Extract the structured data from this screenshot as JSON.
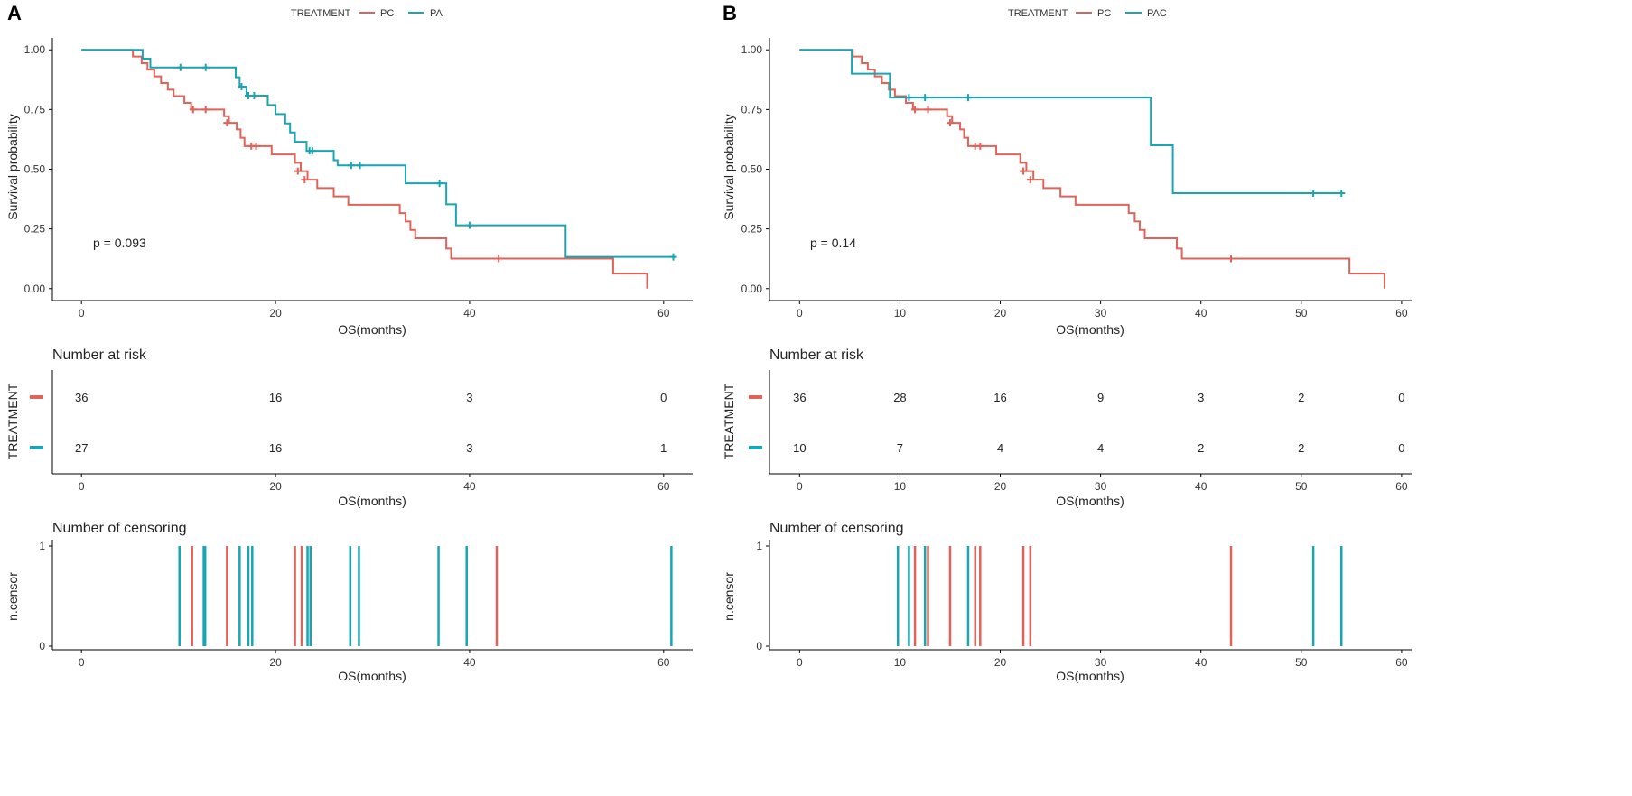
{
  "colors": {
    "pc": "#e0635a",
    "pa": "#19a6b2",
    "axis": "#000000",
    "text": "#333333"
  },
  "panels": [
    {
      "id": "A",
      "label": "A",
      "legend": {
        "title": "TREATMENT",
        "items": [
          {
            "key": "pc",
            "name": "PC"
          },
          {
            "key": "pa",
            "name": "PA"
          }
        ]
      },
      "chart_data": {
        "type": "line",
        "subtype": "kaplan-meier",
        "xlabel": "OS(months)",
        "ylabel": "Survival probability",
        "xlim": [
          -3,
          63
        ],
        "xticks": [
          0,
          20,
          40,
          60
        ],
        "ylim": [
          -0.05,
          1.05
        ],
        "yticks": [
          "0.00",
          "0.25",
          "0.50",
          "0.75",
          "1.00"
        ],
        "p_value": "p = 0.093",
        "series": [
          {
            "name": "PC",
            "key": "pc",
            "steps": [
              [
                0,
                1
              ],
              [
                5.3,
                0.972
              ],
              [
                6.2,
                0.944
              ],
              [
                6.8,
                0.917
              ],
              [
                7.5,
                0.889
              ],
              [
                8.2,
                0.861
              ],
              [
                8.9,
                0.833
              ],
              [
                9.5,
                0.806
              ],
              [
                10.6,
                0.778
              ],
              [
                11.3,
                0.75
              ],
              [
                14.7,
                0.722
              ],
              [
                15.2,
                0.694
              ],
              [
                16.0,
                0.667
              ],
              [
                16.4,
                0.632
              ],
              [
                16.8,
                0.597
              ],
              [
                19.6,
                0.562
              ],
              [
                22.0,
                0.527
              ],
              [
                22.6,
                0.492
              ],
              [
                23.3,
                0.456
              ],
              [
                24.3,
                0.421
              ],
              [
                26.0,
                0.386
              ],
              [
                27.5,
                0.351
              ],
              [
                30.5,
                0.351
              ],
              [
                32.8,
                0.316
              ],
              [
                33.4,
                0.281
              ],
              [
                33.9,
                0.246
              ],
              [
                34.4,
                0.211
              ],
              [
                36.3,
                0.211
              ],
              [
                37.6,
                0.168
              ],
              [
                38.1,
                0.126
              ],
              [
                54.6,
                0.126
              ],
              [
                54.8,
                0.063
              ],
              [
                58.3,
                0.0
              ]
            ],
            "end_x": 58.3,
            "censor": [
              [
                11.5,
                0.75
              ],
              [
                12.8,
                0.75
              ],
              [
                15.0,
                0.694
              ],
              [
                17.5,
                0.597
              ],
              [
                18.0,
                0.597
              ],
              [
                22.3,
                0.492
              ],
              [
                23.0,
                0.456
              ],
              [
                43.0,
                0.126
              ]
            ]
          },
          {
            "name": "PA",
            "key": "pa",
            "steps": [
              [
                0,
                1
              ],
              [
                6.3,
                0.963
              ],
              [
                7.1,
                0.926
              ],
              [
                15.9,
                0.885
              ],
              [
                16.3,
                0.846
              ],
              [
                17.0,
                0.808
              ],
              [
                19.2,
                0.769
              ],
              [
                20.0,
                0.731
              ],
              [
                21.0,
                0.692
              ],
              [
                21.5,
                0.654
              ],
              [
                22.0,
                0.615
              ],
              [
                23.2,
                0.577
              ],
              [
                26.0,
                0.538
              ],
              [
                26.4,
                0.516
              ],
              [
                33.0,
                0.516
              ],
              [
                33.4,
                0.441
              ],
              [
                37.6,
                0.353
              ],
              [
                38.6,
                0.265
              ],
              [
                49.8,
                0.265
              ],
              [
                49.9,
                0.133
              ]
            ],
            "end_x": 61.0,
            "censor": [
              [
                10.2,
                0.926
              ],
              [
                12.8,
                0.926
              ],
              [
                16.5,
                0.846
              ],
              [
                17.2,
                0.808
              ],
              [
                17.8,
                0.808
              ],
              [
                23.5,
                0.577
              ],
              [
                23.8,
                0.577
              ],
              [
                27.8,
                0.516
              ],
              [
                28.7,
                0.516
              ],
              [
                36.9,
                0.441
              ],
              [
                40.0,
                0.265
              ],
              [
                61.0,
                0.133
              ]
            ]
          }
        ]
      },
      "risk": {
        "title": "Number at risk",
        "ylabel": "TREATMENT",
        "xlabel": "OS(months)",
        "times": [
          0,
          20,
          40,
          60
        ],
        "rows": [
          {
            "key": "pc",
            "values": [
              "36",
              "16",
              "3",
              "0"
            ]
          },
          {
            "key": "pa",
            "values": [
              "27",
              "16",
              "3",
              "1"
            ]
          }
        ]
      },
      "censoring": {
        "title": "Number of censoring",
        "ylabel": "n.censor",
        "xlabel": "OS(months)",
        "yticks": [
          "0",
          "1"
        ],
        "events": [
          {
            "key": "pa",
            "x": 10.1
          },
          {
            "key": "pc",
            "x": 11.4
          },
          {
            "key": "pa",
            "x": 12.6
          },
          {
            "key": "pa",
            "x": 12.75
          },
          {
            "key": "pc",
            "x": 15.0
          },
          {
            "key": "pa",
            "x": 16.3
          },
          {
            "key": "pa",
            "x": 17.2
          },
          {
            "key": "pa",
            "x": 17.6
          },
          {
            "key": "pc",
            "x": 22.0
          },
          {
            "key": "pc",
            "x": 22.7
          },
          {
            "key": "pa",
            "x": 23.3
          },
          {
            "key": "pa",
            "x": 23.6
          },
          {
            "key": "pa",
            "x": 27.7
          },
          {
            "key": "pa",
            "x": 28.6
          },
          {
            "key": "pa",
            "x": 36.8
          },
          {
            "key": "pa",
            "x": 39.7
          },
          {
            "key": "pc",
            "x": 42.8
          },
          {
            "key": "pa",
            "x": 60.8
          }
        ]
      }
    },
    {
      "id": "B",
      "label": "B",
      "legend": {
        "title": "TREATMENT",
        "items": [
          {
            "key": "pc",
            "name": "PC"
          },
          {
            "key": "pa",
            "name": "PAC"
          }
        ]
      },
      "chart_data": {
        "type": "line",
        "subtype": "kaplan-meier",
        "xlabel": "OS(months)",
        "ylabel": "Survival probability",
        "xlim": [
          -3,
          61
        ],
        "xticks": [
          0,
          10,
          20,
          30,
          40,
          50,
          60
        ],
        "ylim": [
          -0.05,
          1.05
        ],
        "yticks": [
          "0.00",
          "0.25",
          "0.50",
          "0.75",
          "1.00"
        ],
        "p_value": "p = 0.14",
        "series": [
          {
            "name": "PC",
            "key": "pc",
            "steps": [
              [
                0,
                1
              ],
              [
                5.3,
                0.972
              ],
              [
                6.2,
                0.944
              ],
              [
                6.8,
                0.917
              ],
              [
                7.5,
                0.889
              ],
              [
                8.2,
                0.861
              ],
              [
                8.9,
                0.833
              ],
              [
                9.5,
                0.806
              ],
              [
                10.6,
                0.778
              ],
              [
                11.3,
                0.75
              ],
              [
                14.7,
                0.722
              ],
              [
                15.2,
                0.694
              ],
              [
                16.0,
                0.667
              ],
              [
                16.4,
                0.632
              ],
              [
                16.8,
                0.597
              ],
              [
                19.6,
                0.562
              ],
              [
                22.0,
                0.527
              ],
              [
                22.6,
                0.492
              ],
              [
                23.3,
                0.456
              ],
              [
                24.3,
                0.421
              ],
              [
                26.0,
                0.386
              ],
              [
                27.5,
                0.351
              ],
              [
                30.5,
                0.351
              ],
              [
                32.8,
                0.316
              ],
              [
                33.4,
                0.281
              ],
              [
                33.9,
                0.246
              ],
              [
                34.4,
                0.211
              ],
              [
                36.3,
                0.211
              ],
              [
                37.6,
                0.168
              ],
              [
                38.1,
                0.126
              ],
              [
                54.6,
                0.126
              ],
              [
                54.8,
                0.063
              ],
              [
                58.3,
                0.0
              ]
            ],
            "end_x": 58.3,
            "censor": [
              [
                11.5,
                0.75
              ],
              [
                12.8,
                0.75
              ],
              [
                15.0,
                0.694
              ],
              [
                17.5,
                0.597
              ],
              [
                18.0,
                0.597
              ],
              [
                22.3,
                0.492
              ],
              [
                23.0,
                0.456
              ],
              [
                43.0,
                0.126
              ]
            ]
          },
          {
            "name": "PAC",
            "key": "pa",
            "steps": [
              [
                0,
                1
              ],
              [
                5.2,
                0.9
              ],
              [
                9.0,
                0.8
              ],
              [
                35.0,
                0.6
              ],
              [
                37.2,
                0.4
              ]
            ],
            "end_x": 54.0,
            "censor": [
              [
                10.9,
                0.8
              ],
              [
                12.5,
                0.8
              ],
              [
                16.8,
                0.8
              ],
              [
                51.2,
                0.4
              ],
              [
                54.0,
                0.4
              ]
            ]
          }
        ]
      },
      "risk": {
        "title": "Number at risk",
        "ylabel": "TREATMENT",
        "xlabel": "OS(months)",
        "times": [
          0,
          10,
          20,
          30,
          40,
          50,
          60
        ],
        "rows": [
          {
            "key": "pc",
            "values": [
              "36",
              "28",
              "16",
              "9",
              "3",
              "2",
              "0"
            ]
          },
          {
            "key": "pa",
            "values": [
              "10",
              "7",
              "4",
              "4",
              "2",
              "2",
              "0"
            ]
          }
        ]
      },
      "censoring": {
        "title": "Number of censoring",
        "ylabel": "n.censor",
        "xlabel": "OS(months)",
        "yticks": [
          "0",
          "1"
        ],
        "events": [
          {
            "key": "pa",
            "x": 9.8
          },
          {
            "key": "pa",
            "x": 10.9
          },
          {
            "key": "pc",
            "x": 11.5
          },
          {
            "key": "pa",
            "x": 12.5
          },
          {
            "key": "pc",
            "x": 12.8
          },
          {
            "key": "pc",
            "x": 15.0
          },
          {
            "key": "pa",
            "x": 16.8
          },
          {
            "key": "pc",
            "x": 17.5
          },
          {
            "key": "pc",
            "x": 18.0
          },
          {
            "key": "pc",
            "x": 22.3
          },
          {
            "key": "pc",
            "x": 23.0
          },
          {
            "key": "pc",
            "x": 43.0
          },
          {
            "key": "pa",
            "x": 51.2
          },
          {
            "key": "pa",
            "x": 54.0
          }
        ]
      }
    }
  ]
}
